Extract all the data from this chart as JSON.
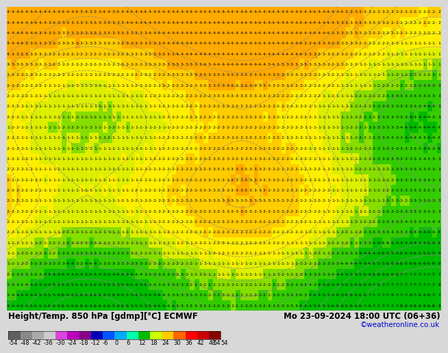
{
  "title_left": "Height/Temp. 850 hPa [gdmp][°C] ECMWF",
  "title_right": "Mo 23-09-2024 18:00 UTC (06+36)",
  "credit": "©weatheronline.co.uk",
  "colorbar_levels": [
    "-54",
    "-48",
    "-42",
    "-36",
    "-30",
    "-24",
    "-18",
    "-12",
    "-6",
    "0",
    "6",
    "12",
    "18",
    "24",
    "30",
    "36",
    "42",
    "48",
    "54"
  ],
  "colorbar_colors": [
    "#606060",
    "#888888",
    "#aaaaaa",
    "#cccccc",
    "#dd44dd",
    "#bb00bb",
    "#880088",
    "#0000bb",
    "#0055ff",
    "#00aaff",
    "#00ffaa",
    "#00bb00",
    "#ccff00",
    "#ffcc00",
    "#ff6600",
    "#ff0000",
    "#cc0000",
    "#880000"
  ],
  "map_green_dark": "#009900",
  "map_green_mid": "#00bb00",
  "map_green_light": "#44cc00",
  "map_yellow": "#ffee00",
  "map_orange": "#ffaa00",
  "bottom_bg": "#d8d8d8",
  "title_fontsize": 8.5,
  "credit_fontsize": 7.5,
  "tick_fontsize": 6.0,
  "num_fontsize": 4.3,
  "grid_rows": 29,
  "grid_cols": 95
}
